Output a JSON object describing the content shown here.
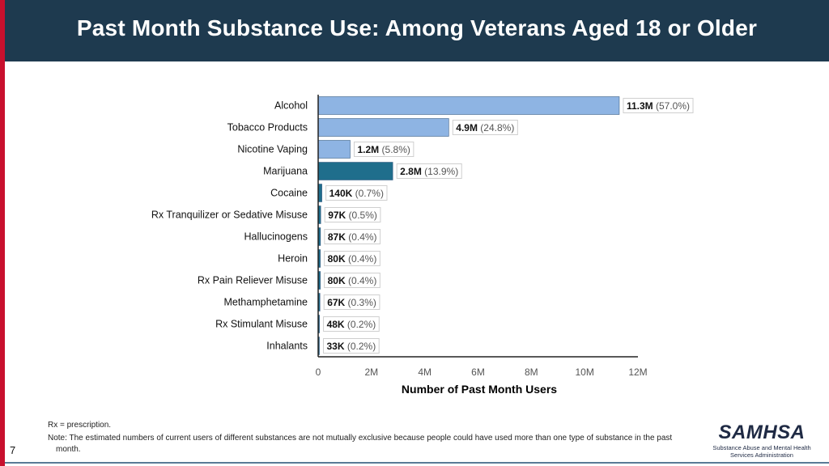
{
  "header": {
    "title": "Past Month Substance Use: Among Veterans Aged 18 or Older"
  },
  "chart_data": {
    "type": "bar",
    "orientation": "horizontal",
    "categories": [
      "Alcohol",
      "Tobacco Products",
      "Nicotine Vaping",
      "Marijuana",
      "Cocaine",
      "Rx Tranquilizer or Sedative Misuse",
      "Hallucinogens",
      "Heroin",
      "Rx Pain Reliever Misuse",
      "Methamphetamine",
      "Rx Stimulant Misuse",
      "Inhalants"
    ],
    "values": [
      11300000,
      4900000,
      1200000,
      2800000,
      140000,
      97000,
      87000,
      80000,
      80000,
      67000,
      48000,
      33000
    ],
    "value_labels": [
      "11.3M",
      "4.9M",
      "1.2M",
      "2.8M",
      "140K",
      "97K",
      "87K",
      "80K",
      "80K",
      "67K",
      "48K",
      "33K"
    ],
    "percent_labels": [
      "(57.0%)",
      "(24.8%)",
      "(5.8%)",
      "(13.9%)",
      "(0.7%)",
      "(0.5%)",
      "(0.4%)",
      "(0.4%)",
      "(0.4%)",
      "(0.3%)",
      "(0.2%)",
      "(0.2%)"
    ],
    "bar_colors": [
      "#8eb4e3",
      "#8eb4e3",
      "#8eb4e3",
      "#1f6e8c",
      "#1f6e8c",
      "#1f6e8c",
      "#1f6e8c",
      "#1f6e8c",
      "#1f6e8c",
      "#1f6e8c",
      "#1f6e8c",
      "#1f6e8c"
    ],
    "xlabel": "Number of Past Month Users",
    "ylabel": "",
    "xlim": [
      0,
      12000000
    ],
    "xticks": [
      0,
      2000000,
      4000000,
      6000000,
      8000000,
      10000000,
      12000000
    ],
    "xtick_labels": [
      "0",
      "2M",
      "4M",
      "6M",
      "8M",
      "10M",
      "12M"
    ],
    "grid": false,
    "legend": "none"
  },
  "footer": {
    "note_rx": "Rx = prescription.",
    "note_main": "Note: The estimated numbers of current users of different substances are not mutually exclusive because people could have used more than one type of substance in the past month.",
    "page_number": "7",
    "logo_text": "SAMHSA",
    "logo_subtitle": "Substance Abuse and Mental Health Services Administration"
  },
  "colors": {
    "header_bg": "#1e3a4f",
    "accent_stripe": "#c8102e",
    "bar_light": "#8eb4e3",
    "bar_dark": "#1f6e8c"
  }
}
